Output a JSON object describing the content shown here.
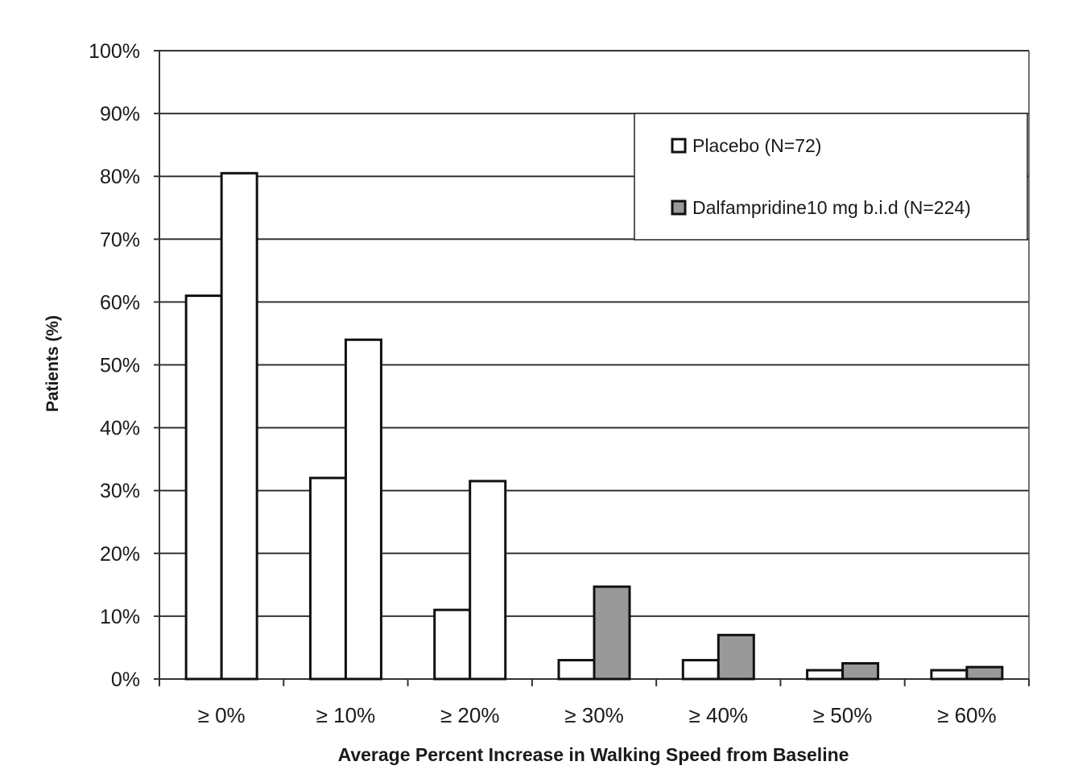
{
  "chart_data": {
    "type": "bar",
    "title": "",
    "xlabel": "Average Percent Increase in Walking Speed from Baseline",
    "ylabel": "Patients (%)",
    "ylim": [
      0,
      100
    ],
    "yticks": [
      0,
      10,
      20,
      30,
      40,
      50,
      60,
      70,
      80,
      90,
      100
    ],
    "ytick_format": "{v}%",
    "grid": true,
    "legend_position": "top-right",
    "categories": [
      "≥ 0%",
      "≥ 10%",
      "≥ 20%",
      "≥ 30%",
      "≥ 40%",
      "≥ 50%",
      "≥ 60%"
    ],
    "series": [
      {
        "name": "Placebo (N=72)",
        "color": "#ffffff",
        "values": [
          61,
          32,
          11,
          3,
          3,
          1.4,
          1.4
        ]
      },
      {
        "name": "Dalfampridine10 mg b.i.d (N=224)",
        "color_low": "#999999",
        "color_high": "#ffffff",
        "values": [
          80.5,
          54,
          31.5,
          14.7,
          7,
          2.5,
          1.9
        ]
      }
    ],
    "note": "Dalfampridine bars are white for the first three categories and grey for the rest"
  }
}
